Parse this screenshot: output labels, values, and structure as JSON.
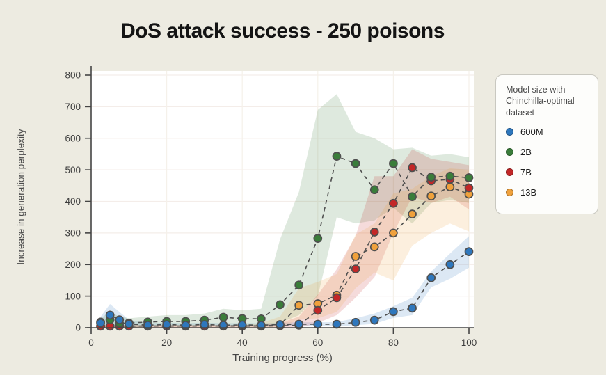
{
  "page": {
    "background": "#edebe1",
    "title": "DoS attack success - 250 poisons"
  },
  "legend": {
    "title": "Model size with Chinchilla-optimal dataset",
    "position": "right",
    "items": [
      {
        "label": "600M",
        "color": "#2e77bd"
      },
      {
        "label": "2B",
        "color": "#3a7d3a"
      },
      {
        "label": "7B",
        "color": "#c32727"
      },
      {
        "label": "13B",
        "color": "#f0a13c"
      }
    ]
  },
  "chart_data": {
    "type": "line",
    "title": "DoS attack success - 250 poisons",
    "xlabel": "Training progress (%)",
    "ylabel": "Increase in generation perplexity",
    "xlim": [
      0,
      100
    ],
    "ylim": [
      0,
      800
    ],
    "x_ticks": [
      0,
      20,
      40,
      60,
      80,
      100
    ],
    "y_ticks": [
      0,
      100,
      200,
      300,
      400,
      500,
      600,
      700,
      800
    ],
    "grid": true,
    "line_style": "dashed",
    "marker": "circle",
    "band_note": "shaded regions are confidence bands per series",
    "x": [
      2.5,
      5,
      7.5,
      10,
      15,
      20,
      25,
      30,
      35,
      40,
      45,
      50,
      55,
      60,
      65,
      70,
      75,
      80,
      85,
      90,
      95,
      100
    ],
    "series": [
      {
        "name": "600M",
        "color": "#2e77bd",
        "values": [
          15,
          40,
          25,
          12,
          8,
          10,
          8,
          10,
          8,
          9,
          8,
          10,
          11,
          11,
          11,
          17,
          24,
          51,
          62,
          158,
          200,
          241
        ],
        "band_low": [
          0,
          0,
          5,
          0,
          3,
          4,
          3,
          4,
          3,
          4,
          3,
          4,
          5,
          5,
          5,
          8,
          12,
          31,
          40,
          128,
          155,
          190
        ],
        "band_high": [
          35,
          75,
          50,
          25,
          14,
          16,
          14,
          16,
          14,
          15,
          14,
          16,
          17,
          17,
          18,
          30,
          45,
          68,
          95,
          178,
          235,
          290
        ]
      },
      {
        "name": "2B",
        "color": "#3a7d3a",
        "values": [
          18,
          25,
          14,
          15,
          18,
          20,
          20,
          24,
          33,
          29,
          28,
          73,
          135,
          283,
          543,
          520,
          437,
          520,
          415,
          477,
          480,
          475
        ],
        "band_low": [
          0,
          0,
          0,
          0,
          3,
          5,
          5,
          6,
          8,
          7,
          7,
          15,
          40,
          100,
          350,
          330,
          340,
          380,
          330,
          395,
          405,
          395
        ],
        "band_high": [
          30,
          50,
          35,
          30,
          35,
          40,
          40,
          45,
          60,
          55,
          60,
          280,
          430,
          690,
          740,
          620,
          600,
          565,
          570,
          545,
          550,
          540
        ]
      },
      {
        "name": "7B",
        "color": "#c32727",
        "values": [
          5,
          5,
          5,
          5,
          5,
          5,
          5,
          5,
          5,
          5,
          5,
          6,
          8,
          55,
          95,
          186,
          303,
          394,
          507,
          465,
          470,
          443
        ],
        "band_low": [
          0,
          0,
          0,
          0,
          0,
          0,
          0,
          0,
          0,
          0,
          0,
          0,
          0,
          15,
          40,
          95,
          160,
          300,
          415,
          395,
          415,
          375
        ],
        "band_high": [
          8,
          8,
          8,
          8,
          8,
          8,
          8,
          8,
          8,
          8,
          8,
          15,
          35,
          105,
          185,
          290,
          480,
          480,
          565,
          535,
          525,
          515
        ]
      },
      {
        "name": "13B",
        "color": "#f0a13c",
        "values": [
          5,
          5,
          5,
          5,
          5,
          5,
          5,
          5,
          6,
          6,
          6,
          9,
          71,
          76,
          103,
          226,
          256,
          300,
          360,
          417,
          446,
          423
        ],
        "band_low": [
          0,
          0,
          0,
          0,
          0,
          0,
          0,
          0,
          0,
          0,
          0,
          0,
          25,
          30,
          50,
          125,
          175,
          150,
          260,
          300,
          330,
          305
        ],
        "band_high": [
          8,
          8,
          8,
          8,
          8,
          8,
          8,
          8,
          8,
          8,
          15,
          35,
          125,
          145,
          170,
          295,
          330,
          425,
          440,
          480,
          505,
          500
        ]
      }
    ]
  }
}
